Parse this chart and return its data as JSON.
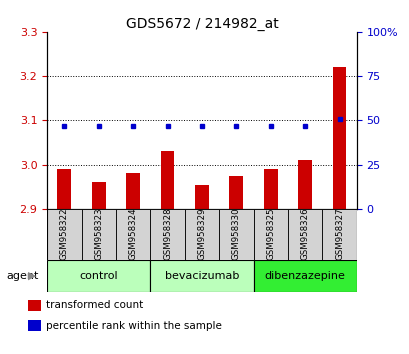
{
  "title": "GDS5672 / 214982_at",
  "samples": [
    "GSM958322",
    "GSM958323",
    "GSM958324",
    "GSM958328",
    "GSM958329",
    "GSM958330",
    "GSM958325",
    "GSM958326",
    "GSM958327"
  ],
  "transformed_counts": [
    2.99,
    2.96,
    2.98,
    3.03,
    2.955,
    2.975,
    2.99,
    3.01,
    3.22
  ],
  "percentile_ranks": [
    47,
    47,
    47,
    47,
    47,
    47,
    47,
    47,
    51
  ],
  "ylim_left": [
    2.9,
    3.3
  ],
  "ylim_right": [
    0,
    100
  ],
  "yticks_left": [
    2.9,
    3.0,
    3.1,
    3.2,
    3.3
  ],
  "yticks_right": [
    0,
    25,
    50,
    75,
    100
  ],
  "groups": [
    {
      "label": "control",
      "indices": [
        0,
        1,
        2
      ],
      "color": "#bbffbb"
    },
    {
      "label": "bevacizumab",
      "indices": [
        3,
        4,
        5
      ],
      "color": "#bbffbb"
    },
    {
      "label": "dibenzazepine",
      "indices": [
        6,
        7,
        8
      ],
      "color": "#33ee33"
    }
  ],
  "bar_color": "#cc0000",
  "dot_color": "#0000cc",
  "bar_bottom": 2.9,
  "background_color": "#ffffff",
  "tick_label_color_left": "#cc0000",
  "tick_label_color_right": "#0000cc",
  "gridline_ticks": [
    3.0,
    3.1,
    3.2
  ],
  "legend_items": [
    {
      "label": "transformed count",
      "color": "#cc0000"
    },
    {
      "label": "percentile rank within the sample",
      "color": "#0000cc"
    }
  ]
}
